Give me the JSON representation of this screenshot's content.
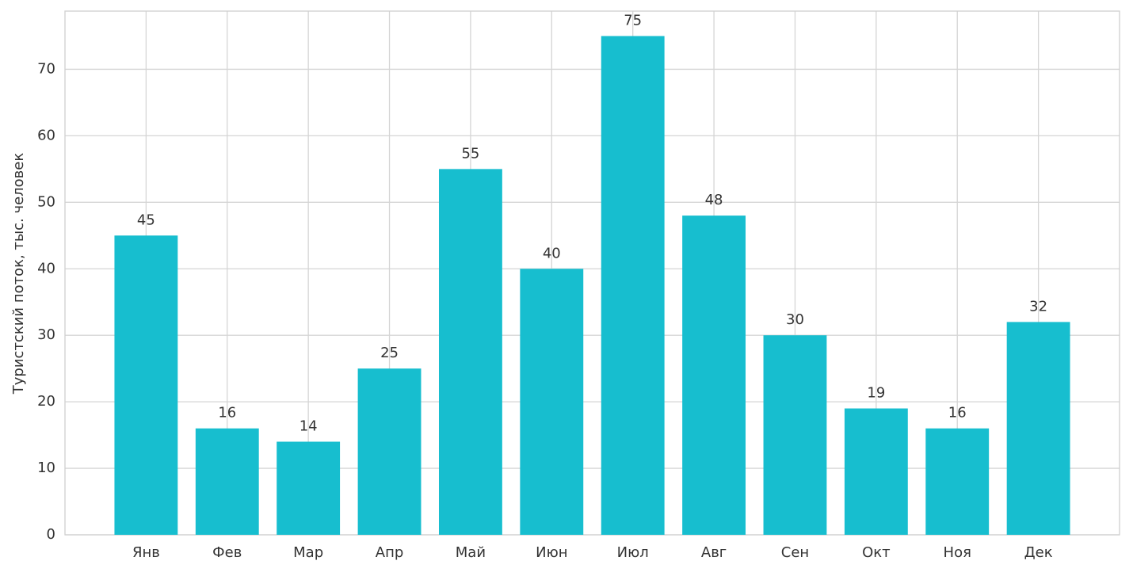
{
  "chart_data": {
    "type": "bar",
    "y_label": "Туристский поток, тыс. человек",
    "categories": [
      "Янв",
      "Фев",
      "Мар",
      "Апр",
      "Май",
      "Июн",
      "Июл",
      "Авг",
      "Сен",
      "Окт",
      "Ноя",
      "Дек"
    ],
    "values": [
      45,
      16,
      14,
      25,
      55,
      40,
      75,
      48,
      30,
      19,
      16,
      32
    ],
    "color": "#17becf",
    "ylim": [
      0,
      78.75
    ],
    "yticks": [
      0,
      10,
      20,
      30,
      40,
      50,
      60,
      70
    ],
    "grid": true
  }
}
